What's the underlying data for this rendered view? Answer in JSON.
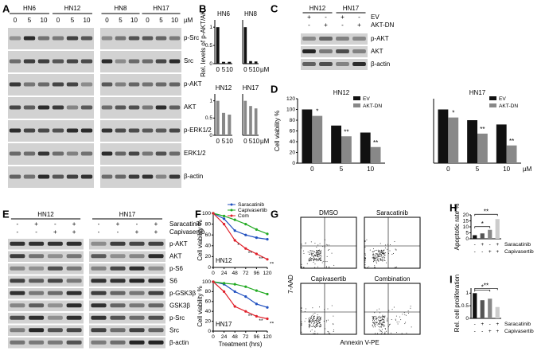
{
  "panel_labels": [
    "A",
    "B",
    "C",
    "D",
    "E",
    "F",
    "G",
    "H",
    "I"
  ],
  "blot_A": {
    "groups": [
      "HN6",
      "HN12",
      "HN8",
      "HN17"
    ],
    "doses": [
      "0",
      "5",
      "10"
    ],
    "unit": "µM",
    "rows": [
      "p-Src",
      "Src",
      "p-AKT",
      "AKT",
      "p-ERK1/2",
      "ERK1/2",
      "β-actin"
    ]
  },
  "blot_C": {
    "groups": [
      "HN12",
      "HN17"
    ],
    "conditions": [
      {
        "name": "EV",
        "signs": [
          "+",
          "-",
          "+",
          "-"
        ]
      },
      {
        "name": "AKT-DN",
        "signs": [
          "-",
          "+",
          "-",
          "+"
        ]
      }
    ],
    "rows": [
      "p-AKT",
      "AKT",
      "β-actin"
    ]
  },
  "blot_E": {
    "groups": [
      "HN12",
      "HN17"
    ],
    "conditions": [
      {
        "name": "Saracatinib",
        "signs": [
          "-",
          "+",
          "-",
          "+",
          "-",
          "+",
          "-",
          "+"
        ]
      },
      {
        "name": "Capivasertib",
        "signs": [
          "-",
          "-",
          "+",
          "+",
          "-",
          "-",
          "+",
          "+"
        ]
      }
    ],
    "rows": [
      "p-AKT",
      "AKT",
      "p-S6",
      "S6",
      "p-GSK3β",
      "GSK3β",
      "p-Src",
      "Src",
      "β-actin"
    ]
  },
  "flow_G": {
    "panels": [
      "DMSO",
      "Saracatinib",
      "Capivasertib",
      "Combination"
    ],
    "y_label": "7-AAD",
    "x_label": "Annexin V-PE"
  },
  "chart_data": [
    {
      "type": "bar",
      "title": "HN6",
      "y_label": "Rel. levels of p-AKT/AKT",
      "categories": [
        "0",
        "5",
        "10"
      ],
      "values": [
        1,
        0.05,
        0.05
      ],
      "color": "#111111",
      "ylim": [
        0,
        1.2
      ],
      "yticks": [
        0,
        0.5,
        1
      ]
    },
    {
      "type": "bar",
      "title": "HN8",
      "categories": [
        "0",
        "5",
        "10"
      ],
      "x_unit": "µM",
      "values": [
        1,
        0.07,
        0.06
      ],
      "color": "#111111",
      "ylim": [
        0,
        1.2
      ]
    },
    {
      "type": "bar",
      "title": "HN12",
      "categories": [
        "0",
        "5",
        "10"
      ],
      "values": [
        1,
        0.65,
        0.6
      ],
      "color": "#888888",
      "ylim": [
        0,
        1.2
      ],
      "yticks": [
        0,
        0.5,
        1
      ]
    },
    {
      "type": "bar",
      "title": "HN17",
      "categories": [
        "0",
        "5",
        "10"
      ],
      "x_unit": "µM",
      "values": [
        1,
        0.85,
        0.78
      ],
      "color": "#888888",
      "ylim": [
        0,
        1.2
      ]
    },
    {
      "type": "bar",
      "title": "HN12",
      "y_label": "Cell viability %",
      "categories": [
        "0",
        "5",
        "10"
      ],
      "series": [
        {
          "name": "EV",
          "color": "#111111",
          "values": [
            100,
            70,
            57
          ]
        },
        {
          "name": "AKT-DN",
          "color": "#888888",
          "values": [
            88,
            50,
            30
          ],
          "significance": [
            "*",
            "**",
            "**"
          ]
        }
      ],
      "ylim": [
        0,
        120
      ],
      "yticks": [
        0,
        20,
        40,
        60,
        80,
        100,
        120
      ]
    },
    {
      "type": "bar",
      "title": "HN17",
      "categories": [
        "0",
        "5",
        "10"
      ],
      "x_unit": "µM",
      "series": [
        {
          "name": "EV",
          "color": "#111111",
          "values": [
            100,
            80,
            72
          ]
        },
        {
          "name": "AKT-DN",
          "color": "#888888",
          "values": [
            85,
            55,
            33
          ],
          "significance": [
            "*",
            "**",
            "**"
          ]
        }
      ],
      "ylim": [
        0,
        120
      ]
    },
    {
      "type": "line",
      "label": "HN12",
      "y_label": "Cell viability %",
      "x": [
        0,
        24,
        48,
        72,
        96,
        120
      ],
      "xlim": [
        0,
        120
      ],
      "xticks": [
        0,
        24,
        48,
        72,
        96,
        120
      ],
      "ylim": [
        0,
        100
      ],
      "yticks": [
        0,
        20,
        40,
        60,
        80,
        100
      ],
      "series": [
        {
          "name": "Saracatinib",
          "color": "#1f4fbf",
          "values": [
            100,
            90,
            68,
            60,
            55,
            52
          ]
        },
        {
          "name": "Capivasertib",
          "color": "#22aa22",
          "values": [
            100,
            95,
            88,
            80,
            70,
            62
          ]
        },
        {
          "name": "Com",
          "color": "#e0202a",
          "values": [
            100,
            80,
            50,
            35,
            25,
            15
          ],
          "significance": [
            null,
            null,
            "*",
            "**",
            "**",
            "**"
          ]
        }
      ]
    },
    {
      "type": "line",
      "label": "HN17",
      "y_label": "Cell viability %",
      "x_label": "Treatment (hrs)",
      "x": [
        0,
        24,
        48,
        72,
        96,
        120
      ],
      "xlim": [
        0,
        120
      ],
      "xticks": [
        0,
        24,
        48,
        72,
        96,
        120
      ],
      "ylim": [
        0,
        100
      ],
      "yticks": [
        0,
        20,
        40,
        60,
        80,
        100
      ],
      "series": [
        {
          "color": "#1f4fbf",
          "values": [
            100,
            95,
            80,
            70,
            55,
            48
          ]
        },
        {
          "color": "#22aa22",
          "values": [
            100,
            97,
            95,
            90,
            82,
            75
          ]
        },
        {
          "color": "#e0202a",
          "values": [
            100,
            80,
            50,
            40,
            30,
            25
          ],
          "significance": [
            null,
            null,
            null,
            "**",
            "**",
            "**"
          ]
        }
      ]
    },
    {
      "type": "bar",
      "y_label": "Apoptotic rate %",
      "values": [
        3,
        4.5,
        7.5,
        16.5
      ],
      "colors": [
        "#111111",
        "#555555",
        "#888888",
        "#cccccc"
      ],
      "ylim": [
        0,
        20
      ],
      "yticks": [
        0,
        5,
        10,
        15,
        20
      ],
      "significance": [
        "*",
        "**"
      ],
      "conditions": [
        {
          "name": "Saracatinib",
          "signs": [
            "-",
            "+",
            "-",
            "+"
          ]
        },
        {
          "name": "Capivasertib",
          "signs": [
            "-",
            "-",
            "+",
            "+"
          ]
        }
      ]
    },
    {
      "type": "bar",
      "y_label": "Rel. cell proliferation",
      "values": [
        1,
        0.72,
        0.78,
        0.45
      ],
      "colors": [
        "#111111",
        "#555555",
        "#888888",
        "#cccccc"
      ],
      "ylim": [
        0,
        1.2
      ],
      "yticks": [
        0,
        0.5,
        1
      ],
      "significance": [
        "*",
        "**"
      ],
      "conditions": [
        {
          "name": "Saracatinib",
          "signs": [
            "-",
            "+",
            "-",
            "+"
          ]
        },
        {
          "name": "Capivasertib",
          "signs": [
            "-",
            "-",
            "+",
            "+"
          ]
        }
      ]
    }
  ]
}
